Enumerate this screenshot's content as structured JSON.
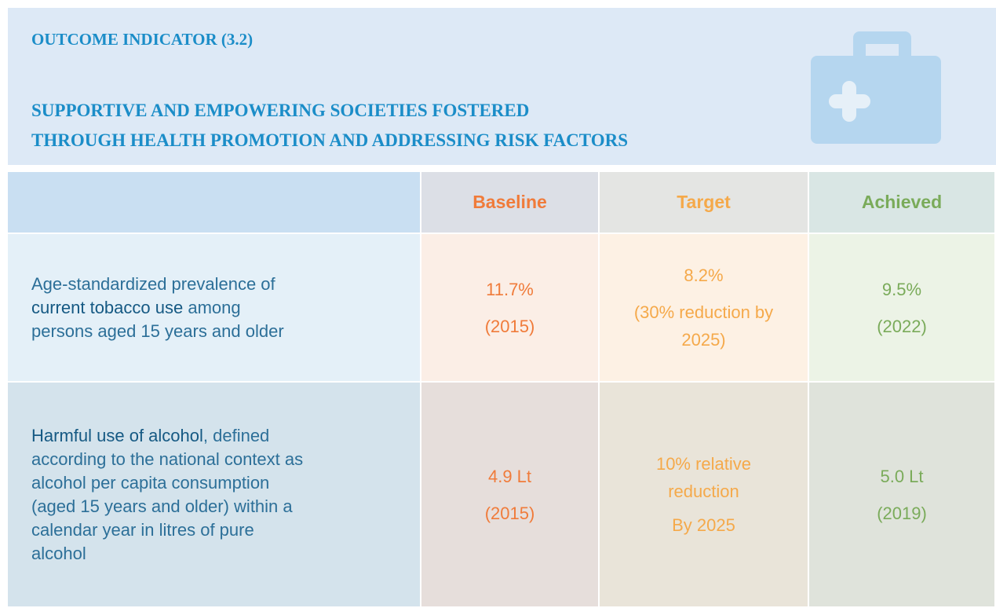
{
  "header": {
    "label": "OUTCOME INDICATOR (3.2)",
    "title_lines": [
      "SUPPORTIVE AND EMPOWERING SOCIETIES FOSTERED",
      "THROUGH HEALTH PROMOTION AND ADDRESSING RISK FACTORS"
    ]
  },
  "table": {
    "columns": [
      "Baseline",
      "Target",
      "Achieved"
    ],
    "rows": [
      {
        "indicator": [
          "Age-standardized prevalence of ",
          "current tobacco use",
          " among persons aged 15 years and older"
        ],
        "baseline": [
          "11.7%",
          "(2015)"
        ],
        "target": [
          "8.2%",
          "(30% reduction by 2025)"
        ],
        "achieved": [
          "9.5%",
          "(2022)"
        ]
      },
      {
        "indicator": [
          "Harmful use of alcohol",
          ", defined according to the national context as alcohol per capita consumption (aged 15 years and older) within a calendar year in litres of pure alcohol"
        ],
        "baseline": [
          "4.9 Lt",
          "(2015)"
        ],
        "target": [
          "10% relative reduction",
          "By 2025"
        ],
        "achieved": [
          "5.0 Lt",
          "(2019)"
        ]
      }
    ]
  }
}
